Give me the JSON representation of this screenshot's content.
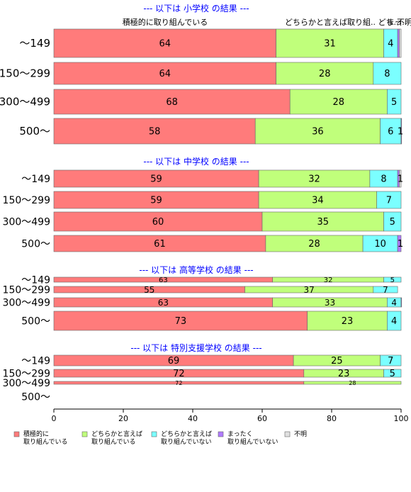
{
  "chart_data": {
    "type": "bar",
    "orientation": "horizontal",
    "stacked": true,
    "xlim": [
      0,
      100
    ],
    "x_ticks": [
      "0",
      "20",
      "40",
      "60",
      "80",
      "100"
    ],
    "colors": [
      "#ff7b7b",
      "#c0ff7b",
      "#7bffff",
      "#b07bff",
      "#e0e0e0"
    ],
    "top_headers": [
      "積極的に取り組んでいる",
      "どちらかと言えば取り組..",
      "どち..",
      "まっ..",
      "不明"
    ],
    "legend": [
      {
        "lines": [
          "積極的に",
          "取り組んでいる"
        ]
      },
      {
        "lines": [
          "どちらかと言えば",
          "取り組んでいる"
        ]
      },
      {
        "lines": [
          "どちらかと言えば",
          "取り組んでいない"
        ]
      },
      {
        "lines": [
          "まったく",
          "取り組んでいない"
        ]
      },
      {
        "lines": [
          "不明"
        ]
      }
    ],
    "panels": [
      {
        "title": "--- 以下は 小学校 の結果 ---",
        "categories": [
          "〜149",
          "150〜299",
          "300〜499",
          "500〜"
        ],
        "values": [
          [
            64,
            31,
            4,
            0.5,
            0.5
          ],
          [
            64,
            28,
            8,
            0,
            0
          ],
          [
            68,
            28,
            5,
            0,
            0
          ],
          [
            58,
            36,
            6,
            1,
            0
          ]
        ],
        "labels": [
          [
            "64",
            "31",
            "4",
            "",
            ""
          ],
          [
            "64",
            "28",
            "8",
            "",
            ""
          ],
          [
            "68",
            "28",
            "5",
            "",
            ""
          ],
          [
            "58",
            "36",
            "6",
            "1",
            ""
          ]
        ]
      },
      {
        "title": "--- 以下は 中学校 の結果 ---",
        "categories": [
          "〜149",
          "150〜299",
          "300〜499",
          "500〜"
        ],
        "values": [
          [
            59,
            32,
            8,
            0.5,
            1
          ],
          [
            59,
            34,
            7,
            0,
            0
          ],
          [
            60,
            35,
            5,
            0,
            0
          ],
          [
            61,
            28,
            10,
            1,
            0
          ]
        ],
        "labels": [
          [
            "59",
            "32",
            "8",
            "",
            "1"
          ],
          [
            "59",
            "34",
            "7",
            "",
            ""
          ],
          [
            "60",
            "35",
            "5",
            "",
            ""
          ],
          [
            "61",
            "28",
            "10",
            "1",
            ""
          ]
        ]
      },
      {
        "title": "--- 以下は 高等学校 の結果 ---",
        "categories": [
          "〜149",
          "150〜299",
          "300〜499",
          "500〜"
        ],
        "values": [
          [
            63,
            32,
            5,
            0,
            0
          ],
          [
            55,
            37,
            7,
            0,
            0
          ],
          [
            63,
            33,
            4,
            0.5,
            0
          ],
          [
            73,
            23,
            4,
            0,
            0
          ]
        ],
        "labels": [
          [
            "63",
            "32",
            "5",
            "",
            ""
          ],
          [
            "55",
            "37",
            "7",
            "",
            ""
          ],
          [
            "63",
            "33",
            "4",
            "",
            ""
          ],
          [
            "73",
            "23",
            "4",
            "",
            ""
          ]
        ]
      },
      {
        "title": "--- 以下は 特別支援学校 の結果 ---",
        "categories": [
          "〜149",
          "150〜299",
          "300〜499",
          "500〜"
        ],
        "values": [
          [
            69,
            25,
            7,
            0,
            0
          ],
          [
            72,
            23,
            5,
            0,
            0
          ],
          [
            72,
            28,
            0,
            0,
            0
          ],
          [
            0,
            0,
            0,
            0,
            0
          ]
        ],
        "labels": [
          [
            "69",
            "25",
            "7",
            "",
            ""
          ],
          [
            "72",
            "23",
            "5",
            "",
            ""
          ],
          [
            "72",
            "28",
            "",
            "",
            ""
          ],
          [
            "",
            "",
            "",
            "",
            ""
          ]
        ]
      }
    ]
  }
}
